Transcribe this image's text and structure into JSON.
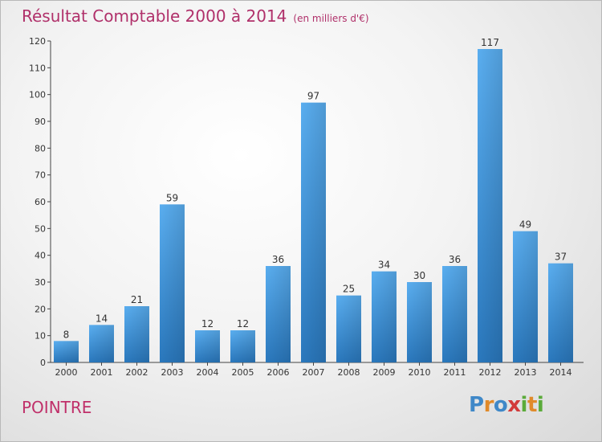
{
  "header": {
    "title": "Résultat Comptable 2000 à 2014",
    "subtitle": "(en milliers d'€)"
  },
  "footer": {
    "commune": "POINTRE",
    "logo_letters": [
      {
        "char": "P",
        "color": "#3f88c8"
      },
      {
        "char": "r",
        "color": "#e08a2a"
      },
      {
        "char": "o",
        "color": "#3f88c8"
      },
      {
        "char": "x",
        "color": "#d23b3b"
      },
      {
        "char": "i",
        "color": "#5bab3a"
      },
      {
        "char": "t",
        "color": "#e08a2a"
      },
      {
        "char": "i",
        "color": "#5bab3a"
      }
    ]
  },
  "chart_data": {
    "type": "bar",
    "title": "Résultat Comptable 2000 à 2014",
    "subtitle": "(en milliers d'€)",
    "categories": [
      "2000",
      "2001",
      "2002",
      "2003",
      "2004",
      "2005",
      "2006",
      "2007",
      "2008",
      "2009",
      "2010",
      "2011",
      "2012",
      "2013",
      "2014"
    ],
    "values": [
      8,
      14,
      21,
      59,
      12,
      12,
      36,
      97,
      25,
      34,
      30,
      36,
      117,
      49,
      37
    ],
    "ylim": [
      0,
      120
    ],
    "yticks": [
      0,
      10,
      20,
      30,
      40,
      50,
      60,
      70,
      80,
      90,
      100,
      110,
      120
    ],
    "grid": false,
    "bar_color": "#3a8fd6"
  }
}
